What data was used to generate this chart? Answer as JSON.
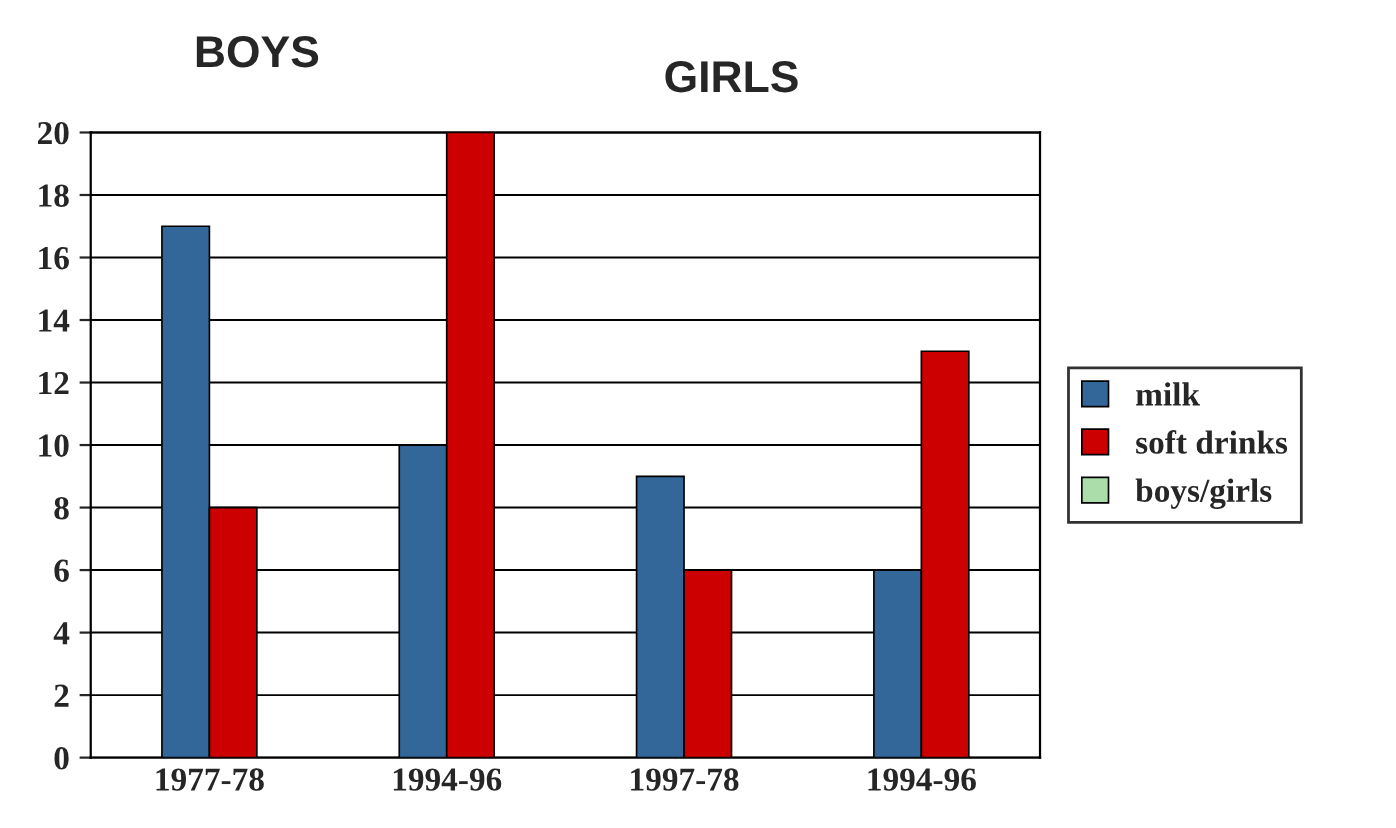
{
  "chart_data": {
    "type": "bar",
    "categories": [
      "1977-78",
      "1994-96",
      "1997-78",
      "1994-96"
    ],
    "series": [
      {
        "name": "milk",
        "color": "#336699",
        "values": [
          17,
          10,
          9,
          6
        ]
      },
      {
        "name": "soft drinks",
        "color": "#cc0000",
        "values": [
          8,
          20,
          6,
          13
        ]
      },
      {
        "name": "boys/girls",
        "color": "#aaddaa",
        "values": [
          null,
          null,
          null,
          null
        ]
      }
    ],
    "annotations": [
      "BOYS",
      "GIRLS"
    ],
    "ylim": [
      0,
      20
    ],
    "yticks": [
      0,
      2,
      4,
      6,
      8,
      10,
      12,
      14,
      16,
      18,
      20
    ],
    "grid": "y",
    "legend": "right"
  }
}
